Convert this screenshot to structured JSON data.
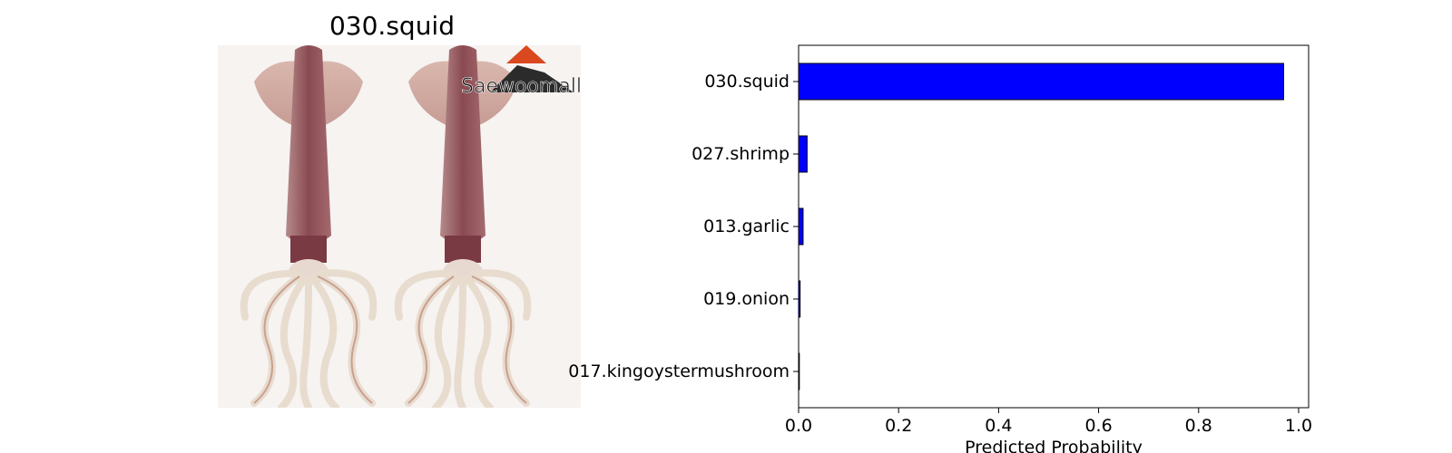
{
  "image_panel": {
    "title": "030.squid",
    "photo_watermark": "Saewoomall"
  },
  "chart_data": {
    "type": "bar",
    "orientation": "horizontal",
    "categories": [
      "030.squid",
      "027.shrimp",
      "013.garlic",
      "019.onion",
      "017.kingoystermushroom"
    ],
    "values": [
      0.97,
      0.017,
      0.009,
      0.003,
      0.001
    ],
    "xlabel": "Predicted Probability",
    "ylabel": "",
    "xlim": [
      0,
      1.02
    ],
    "xticks": [
      "0.0",
      "0.2",
      "0.4",
      "0.6",
      "0.8",
      "1.0"
    ],
    "grid": false,
    "bar_color": "#0000ff",
    "edge_color": "#000000"
  }
}
